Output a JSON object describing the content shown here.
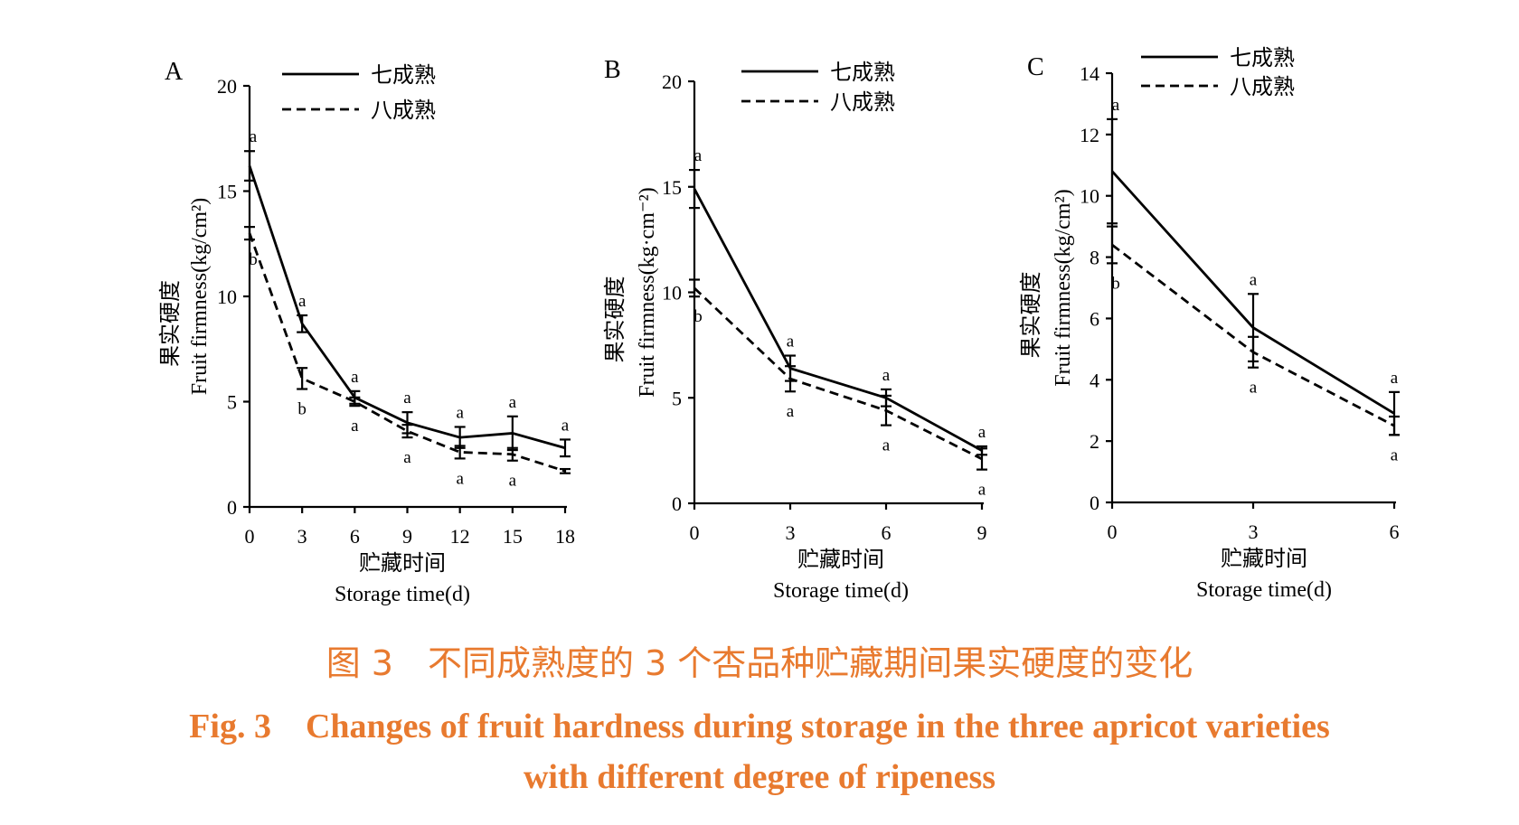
{
  "chart_data": [
    {
      "type": "line",
      "panel": "A",
      "x": [
        0,
        3,
        6,
        9,
        12,
        15,
        18
      ],
      "ylim": [
        0,
        20
      ],
      "yticks": [
        0,
        5,
        10,
        15,
        20
      ],
      "ylabel_cn": "果实硬度",
      "ylabel_en": "Fruit firmness(kg/cm²)",
      "xlabel_cn": "贮藏时间",
      "xlabel_en": "Storage time(d)",
      "legend_position": "top",
      "series": [
        {
          "name": "七成熟",
          "style": "solid",
          "values": [
            16.2,
            8.7,
            5.2,
            4.0,
            3.3,
            3.5,
            2.8
          ],
          "errors": [
            0.7,
            0.4,
            0.3,
            0.5,
            0.5,
            0.8,
            0.4
          ],
          "labels": [
            "a",
            "a",
            "a",
            "a",
            "a",
            "a",
            "a"
          ]
        },
        {
          "name": "八成熟",
          "style": "dashed",
          "values": [
            13.0,
            6.1,
            5.0,
            3.6,
            2.6,
            2.5,
            1.7
          ],
          "errors": [
            0.3,
            0.5,
            0.2,
            0.3,
            0.3,
            0.3,
            0.1
          ],
          "labels": [
            "b",
            "b",
            "a",
            "a",
            "a",
            "a",
            ""
          ]
        }
      ]
    },
    {
      "type": "line",
      "panel": "B",
      "x": [
        0,
        3,
        6,
        9
      ],
      "ylim": [
        0,
        20
      ],
      "yticks": [
        0,
        5,
        10,
        15,
        20
      ],
      "ylabel_cn": "果实硬度",
      "ylabel_en": "Fruit firmness(kg·cm⁻²)",
      "xlabel_cn": "贮藏时间",
      "xlabel_en": "Storage time(d)",
      "legend_position": "top",
      "series": [
        {
          "name": "七成熟",
          "style": "solid",
          "values": [
            14.9,
            6.4,
            5.0,
            2.5
          ],
          "errors": [
            0.9,
            0.6,
            0.4,
            0.2
          ],
          "labels": [
            "a",
            "a",
            "a",
            "a"
          ]
        },
        {
          "name": "八成熟",
          "style": "dashed",
          "values": [
            10.2,
            5.9,
            4.4,
            2.1
          ],
          "errors": [
            0.4,
            0.6,
            0.7,
            0.5
          ],
          "labels": [
            "b",
            "a",
            "a",
            "a"
          ]
        }
      ]
    },
    {
      "type": "line",
      "panel": "C",
      "x": [
        0,
        3,
        6
      ],
      "ylim": [
        0,
        14
      ],
      "yticks": [
        0,
        2,
        4,
        6,
        8,
        10,
        12,
        14
      ],
      "ylabel_cn": "果实硬度",
      "ylabel_en": "Fruit firmness(kg/cm²)",
      "xlabel_cn": "贮藏时间",
      "xlabel_en": "Storage time(d)",
      "legend_position": "top",
      "series": [
        {
          "name": "七成熟",
          "style": "solid",
          "values": [
            10.8,
            5.7,
            2.9
          ],
          "errors": [
            1.7,
            1.1,
            0.7
          ],
          "labels": [
            "a",
            "a",
            "a"
          ]
        },
        {
          "name": "八成熟",
          "style": "dashed",
          "values": [
            8.4,
            4.9,
            2.5
          ],
          "errors": [
            0.6,
            0.5,
            0.3
          ],
          "labels": [
            "b",
            "a",
            "a"
          ]
        }
      ]
    }
  ],
  "caption": {
    "cn": "图 3　不同成熟度的 3 个杏品种贮藏期间果实硬度的变化",
    "en_line1": "Fig. 3　Changes of fruit hardness during storage in the three apricot varieties",
    "en_line2": "with different degree of ripeness"
  },
  "colors": {
    "caption": "#e87a2f",
    "lines": "#000000"
  }
}
